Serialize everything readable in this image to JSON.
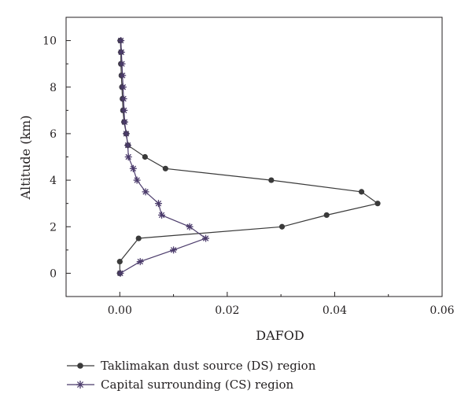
{
  "chart_data": {
    "type": "line",
    "xlabel": "DAFOD",
    "ylabel": "Altitude (km)",
    "xlim": [
      -0.01,
      0.06
    ],
    "ylim": [
      -1,
      11
    ],
    "xticks": [
      0.0,
      0.02,
      0.04,
      0.06
    ],
    "xtick_labels": [
      "0.00",
      "0.02",
      "0.04",
      "0.06"
    ],
    "yticks": [
      0,
      2,
      4,
      6,
      8,
      10
    ],
    "ytick_labels": [
      "0",
      "2",
      "4",
      "6",
      "8",
      "10"
    ],
    "grid": false,
    "legend_position": "bottom-left, below plot",
    "series": [
      {
        "name": "Taklimakan dust source (DS) region",
        "marker": "circle",
        "color": "#3a3a3a",
        "x": [
          0.0,
          0.0,
          0.0035,
          0.0302,
          0.0385,
          0.048,
          0.045,
          0.0282,
          0.0085,
          0.0047,
          0.0015,
          0.0012,
          0.0008,
          0.0006,
          0.0005,
          0.0004,
          0.0003,
          0.0002,
          0.0002,
          0.0001,
          0.0001
        ],
        "y": [
          0.0,
          0.5,
          1.5,
          2.0,
          2.5,
          3.0,
          3.5,
          4.0,
          4.5,
          5.0,
          5.5,
          6.0,
          6.5,
          7.0,
          7.5,
          8.0,
          8.5,
          9.0,
          9.5,
          10.0,
          10.0
        ]
      },
      {
        "name": "Capital surrounding (CS) region",
        "marker": "asterisk",
        "color": "#4b3b6b",
        "x": [
          0.0001,
          0.0038,
          0.01,
          0.016,
          0.013,
          0.0078,
          0.0072,
          0.0048,
          0.0032,
          0.0025,
          0.0016,
          0.0015,
          0.0012,
          0.0009,
          0.0008,
          0.0007,
          0.0006,
          0.0005,
          0.0004,
          0.0003,
          0.0002
        ],
        "y": [
          0.0,
          0.5,
          1.0,
          1.5,
          2.0,
          2.5,
          3.0,
          3.5,
          4.0,
          4.5,
          5.0,
          5.5,
          6.0,
          6.5,
          7.0,
          7.5,
          8.0,
          8.5,
          9.0,
          9.5,
          10.0
        ]
      }
    ]
  }
}
